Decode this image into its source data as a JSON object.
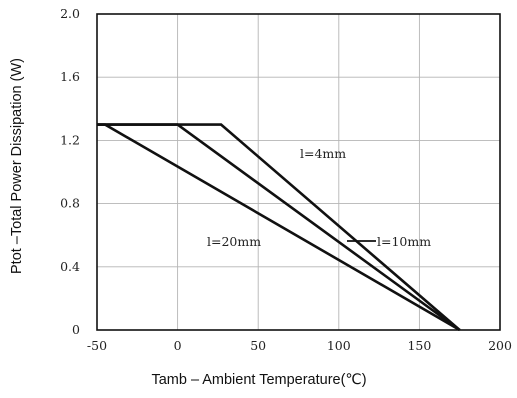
{
  "chart_data": {
    "type": "line",
    "title": "",
    "xlabel": "Tamb – Ambient Temperature(℃)",
    "ylabel": "Ptot –Total Power Dissipation (W)",
    "xlim": [
      -50,
      200
    ],
    "ylim": [
      0,
      2.0
    ],
    "xticks": [
      -50,
      0,
      50,
      100,
      150,
      200
    ],
    "yticks": [
      0,
      0.4,
      0.8,
      1.2,
      1.6,
      2.0
    ],
    "xtick_labels": [
      "-50",
      "0",
      "50",
      "100",
      "150",
      "200"
    ],
    "ytick_labels": [
      "0",
      "0.4",
      "0.8",
      "1.2",
      "1.6",
      "2.0"
    ],
    "grid": true,
    "legend": "none",
    "series": [
      {
        "name": "l=4mm",
        "x": [
          -50,
          27,
          175
        ],
        "y": [
          1.3,
          1.3,
          0
        ]
      },
      {
        "name": "l=10mm",
        "x": [
          -50,
          0,
          175
        ],
        "y": [
          1.3,
          1.3,
          0
        ]
      },
      {
        "name": "l=20mm",
        "x": [
          -50,
          -45,
          175
        ],
        "y": [
          1.3,
          1.3,
          0
        ]
      }
    ],
    "annotations": [
      {
        "text": "l=4mm"
      },
      {
        "text": "l=10mm"
      },
      {
        "text": "l=20mm"
      }
    ]
  }
}
